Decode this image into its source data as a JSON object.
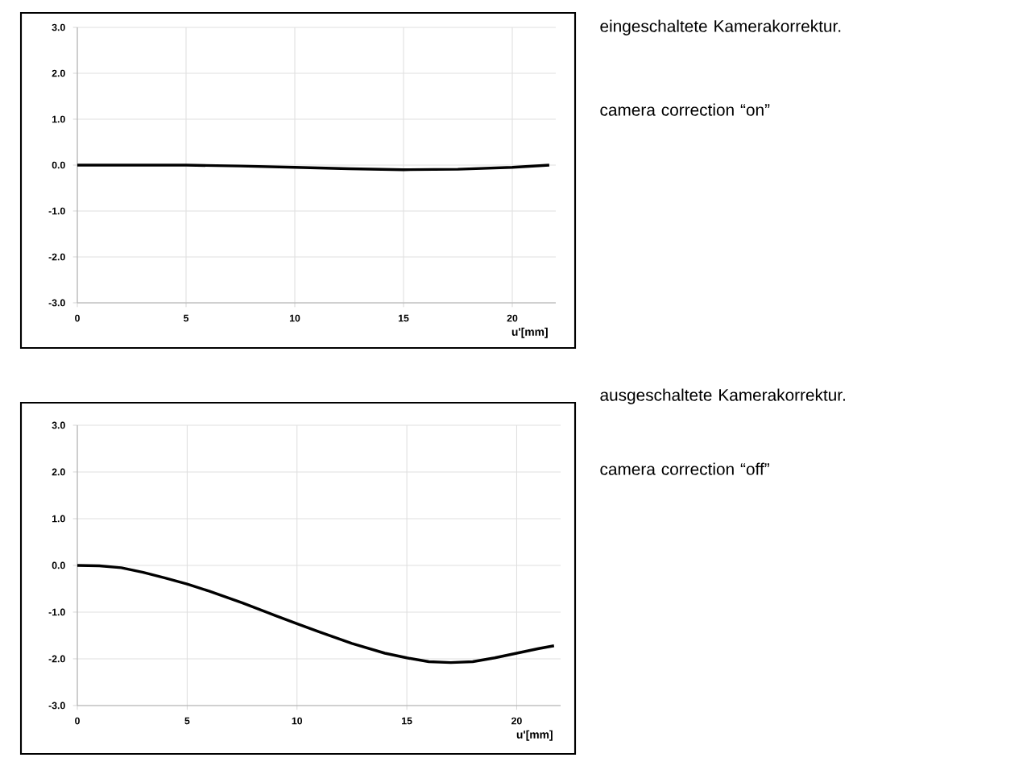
{
  "chart_data": [
    {
      "type": "line",
      "xlabel": "u'[mm]",
      "x": [
        0,
        2.5,
        5,
        7.5,
        10,
        12.5,
        15,
        17.5,
        20,
        21.7
      ],
      "series": [
        {
          "color": "#000000",
          "values": [
            0,
            0,
            0,
            -0.02,
            -0.05,
            -0.08,
            -0.1,
            -0.09,
            -0.05,
            0
          ]
        }
      ],
      "xlim": [
        0,
        22
      ],
      "xticks": [
        0,
        5,
        10,
        15,
        20
      ],
      "ylim": [
        -3,
        3
      ],
      "yticks": [
        {
          "value": -3,
          "label": "-3.0"
        },
        {
          "value": -2,
          "label": "-2.0"
        },
        {
          "value": -1,
          "label": "-1.0"
        },
        {
          "value": 0,
          "label": "0.0"
        },
        {
          "value": 1,
          "label": "1.0"
        },
        {
          "value": 2,
          "label": "2.0"
        },
        {
          "value": 3,
          "label": "3.0"
        }
      ],
      "grid": true,
      "annotations": [
        "eingeschaltete Kamerakorrektur.",
        "camera correction “on”"
      ]
    },
    {
      "type": "line",
      "xlabel": "u'[mm]",
      "x": [
        0,
        1,
        2,
        3,
        4,
        5,
        6,
        7.5,
        9,
        10,
        11,
        12.5,
        14,
        15,
        16,
        17,
        18,
        19,
        20,
        21,
        21.7
      ],
      "series": [
        {
          "color": "#000000",
          "values": [
            0,
            -0.01,
            -0.05,
            -0.15,
            -0.27,
            -0.4,
            -0.55,
            -0.8,
            -1.07,
            -1.25,
            -1.42,
            -1.67,
            -1.88,
            -1.98,
            -2.06,
            -2.08,
            -2.06,
            -1.98,
            -1.88,
            -1.78,
            -1.72
          ]
        }
      ],
      "xlim": [
        0,
        22
      ],
      "xticks": [
        0,
        5,
        10,
        15,
        20
      ],
      "ylim": [
        -3,
        3
      ],
      "yticks": [
        {
          "value": -3,
          "label": "-3.0"
        },
        {
          "value": -2,
          "label": "-2.0"
        },
        {
          "value": -1,
          "label": "-1.0"
        },
        {
          "value": 0,
          "label": "0.0"
        },
        {
          "value": 1,
          "label": "1.0"
        },
        {
          "value": 2,
          "label": "2.0"
        },
        {
          "value": 3,
          "label": "3.0"
        }
      ],
      "grid": true,
      "annotations": [
        "ausgeschaltete Kamerakorrektur.",
        "camera correction “off”"
      ]
    }
  ]
}
